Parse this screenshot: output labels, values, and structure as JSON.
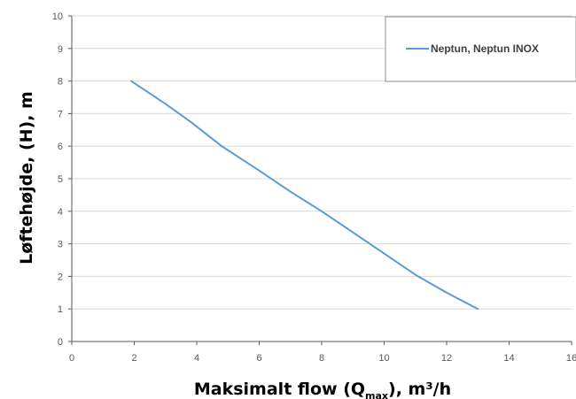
{
  "chart_data": {
    "type": "line",
    "xlabel": "Maksimalt flow (Q",
    "xlabel_sub": "max",
    "xlabel_suffix": "), m³/h",
    "ylabel": "Løftehøjde, (H), m",
    "xlim": [
      0,
      16
    ],
    "ylim": [
      0,
      10
    ],
    "xticks": [
      0,
      2,
      4,
      6,
      8,
      10,
      12,
      14,
      16
    ],
    "yticks": [
      0,
      1,
      2,
      3,
      4,
      5,
      6,
      7,
      8,
      9,
      10
    ],
    "xtick_labels": [
      "0",
      "2",
      "4",
      "6",
      "8",
      "10",
      "12",
      "14",
      "16"
    ],
    "ytick_labels": [
      "0",
      "1",
      "2",
      "3",
      "4",
      "5",
      "6",
      "7",
      "8",
      "9",
      "10"
    ],
    "grid": true,
    "legend_position": "top-right",
    "series": [
      {
        "name": "Neptun, Neptun INOX",
        "color": "#5b9bd5",
        "x": [
          1.9,
          3.0,
          3.8,
          4.8,
          6.0,
          7.0,
          8.0,
          9.0,
          10.0,
          11.0,
          12.0,
          13.0
        ],
        "y": [
          8.0,
          7.3,
          6.75,
          6.0,
          5.25,
          4.6,
          4.0,
          3.35,
          2.7,
          2.05,
          1.5,
          1.0
        ]
      }
    ]
  }
}
